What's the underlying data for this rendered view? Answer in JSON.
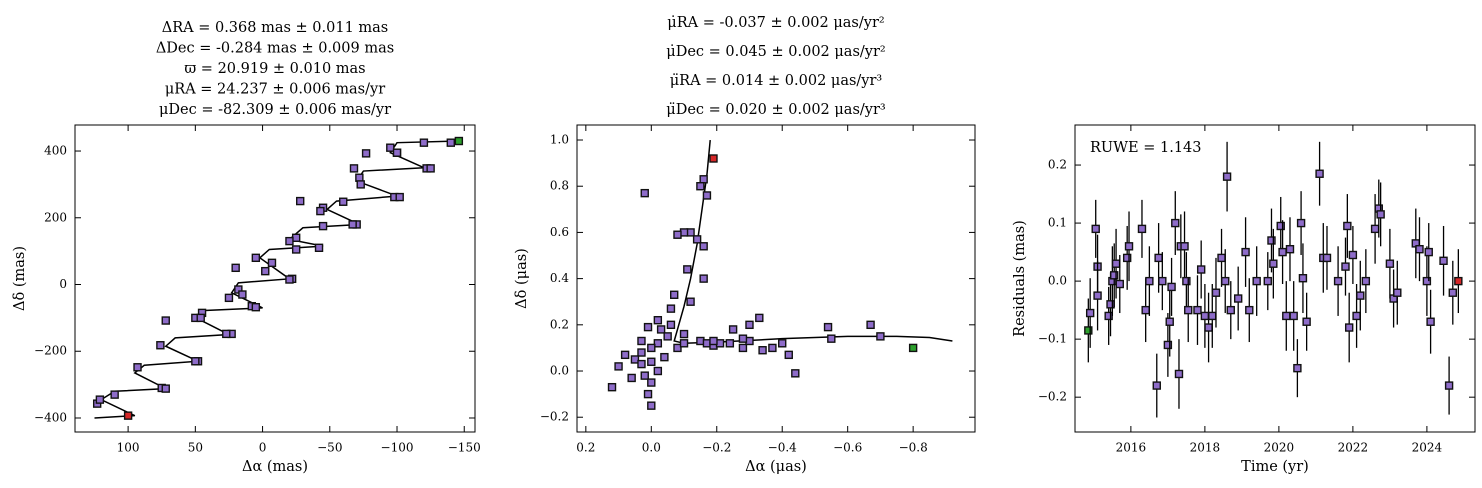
{
  "chart_data": [
    {
      "type": "scatter",
      "title_lines": [
        "ΔRA = 0.368 mas ± 0.011 mas",
        "ΔDec = -0.284 mas ± 0.009 mas",
        "ϖ = 20.919 ± 0.010 mas",
        "μRA = 24.237 ± 0.006 mas/yr",
        "μDec = -82.309 ± 0.006 mas/yr"
      ],
      "xlabel": "Δα (mas)",
      "ylabel": "Δδ (mas)",
      "xlim": [
        139.5,
        -158
      ],
      "ylim": [
        -442,
        478
      ],
      "xticks": [
        100,
        50,
        0,
        {
          "value": -50,
          "label": "−50"
        },
        {
          "value": -100,
          "label": "−100"
        },
        {
          "value": -150,
          "label": "−150"
        }
      ],
      "yticks": [
        {
          "value": -400,
          "label": "−400"
        },
        {
          "value": -200,
          "label": "−200"
        },
        0,
        200,
        400
      ],
      "curve": {
        "color": "#000000",
        "x": [
          -146,
          -100,
          -95,
          -120,
          -75,
          -70,
          -100,
          -55,
          -48,
          -72,
          -30,
          -20,
          -45,
          -5,
          2,
          -20,
          18,
          23,
          0,
          43,
          47,
          25,
          65,
          72,
          48,
          88,
          95,
          72,
          110,
          120,
          95,
          125
        ],
        "values": [
          430,
          425,
          395,
          350,
          340,
          310,
          265,
          250,
          225,
          180,
          170,
          135,
          115,
          105,
          80,
          17,
          5,
          -25,
          -70,
          -78,
          -105,
          -150,
          -160,
          -185,
          -230,
          -242,
          -265,
          -312,
          -320,
          -345,
          -393,
          -400
        ]
      },
      "series": [
        {
          "color": "#8e6cc9",
          "x": [
            -120,
            -122,
            -98,
            -102,
            -72,
            -73,
            -100,
            -95,
            -77,
            -68,
            -60,
            -45,
            -43,
            -70,
            -67,
            -45,
            -25,
            -20,
            -42,
            -25,
            -22,
            -20,
            5,
            20,
            18,
            15,
            25,
            45,
            50,
            23,
            27,
            48,
            50,
            75,
            72,
            93,
            76,
            123,
            121,
            110,
            72,
            46,
            -7,
            -2,
            -100,
            -125,
            -140,
            -28,
            8,
            5
          ],
          "values": [
            425,
            348,
            262,
            262,
            320,
            300,
            395,
            410,
            393,
            348,
            248,
            230,
            220,
            180,
            180,
            175,
            140,
            130,
            110,
            105,
            17,
            15,
            80,
            50,
            -15,
            -30,
            -40,
            -85,
            -100,
            -148,
            -148,
            -230,
            -230,
            -310,
            -312,
            -248,
            -182,
            -357,
            -345,
            -330,
            -108,
            -100,
            65,
            40,
            395,
            348,
            425,
            250,
            -65,
            -68
          ]
        },
        {
          "color": "#2ca02c",
          "x": [
            -146
          ],
          "values": [
            430
          ]
        },
        {
          "color": "#d62728",
          "x": [
            100
          ],
          "values": [
            -393
          ]
        }
      ]
    },
    {
      "type": "scatter",
      "title_lines": [
        "μ̇RA = -0.037 ± 0.002 μas/yr²",
        "μ̇Dec = 0.045 ± 0.002 μas/yr²",
        "μ̈RA = 0.014 ± 0.002 μas/yr³",
        "μ̈Dec = 0.020 ± 0.002 μas/yr³"
      ],
      "xlabel": "Δα (μas)",
      "ylabel": "Δδ (μas)",
      "xlim": [
        0.227,
        -0.989
      ],
      "ylim": [
        -0.264,
        1.065
      ],
      "xticks": [
        0.2,
        {
          "value": 0,
          "label": "0.0"
        },
        {
          "value": -0.2,
          "label": "−0.2"
        },
        {
          "value": -0.4,
          "label": "−0.4"
        },
        {
          "value": -0.6,
          "label": "−0.6"
        },
        {
          "value": -0.8,
          "label": "−0.8"
        }
      ],
      "yticks": [
        {
          "value": -0.2,
          "label": "−0.2"
        },
        {
          "value": 0,
          "label": "0.0"
        },
        0.2,
        0.4,
        0.6,
        0.8,
        {
          "value": 1,
          "label": "1.0"
        }
      ],
      "curve": {
        "color": "#000000",
        "x": [
          -0.18,
          -0.17,
          -0.155,
          -0.14,
          -0.12,
          -0.1,
          -0.08,
          -0.07,
          -0.1,
          -0.2,
          -0.4,
          -0.6,
          -0.75,
          -0.85,
          -0.92
        ],
        "values": [
          1.0,
          0.85,
          0.7,
          0.55,
          0.4,
          0.28,
          0.18,
          0.13,
          0.12,
          0.125,
          0.14,
          0.15,
          0.15,
          0.145,
          0.13
        ]
      },
      "series": [
        {
          "color": "#8e6cc9",
          "x": [
            0.02,
            -0.16,
            -0.15,
            -0.17,
            -0.12,
            -0.1,
            -0.08,
            -0.14,
            -0.16,
            -0.11,
            -0.16,
            -0.12,
            -0.07,
            -0.06,
            -0.06,
            -0.02,
            0.01,
            -0.03,
            0.03,
            -0.05,
            -0.02,
            0,
            0.03,
            0.05,
            0.1,
            0.08,
            0.06,
            0.02,
            0,
            -0.02,
            0.03,
            0,
            0.01,
            0,
            0.12,
            -0.04,
            -0.08,
            -0.1,
            -0.15,
            -0.17,
            -0.19,
            -0.21,
            -0.24,
            -0.28,
            -0.3,
            -0.3,
            -0.33,
            -0.37,
            -0.4,
            -0.42,
            -0.34,
            -0.28,
            -0.25,
            -0.19,
            -0.1,
            -0.54,
            -0.55,
            -0.67,
            -0.7,
            -0.44
          ],
          "values": [
            0.77,
            0.83,
            0.8,
            0.76,
            0.6,
            0.6,
            0.59,
            0.57,
            0.54,
            0.44,
            0.4,
            0.3,
            0.33,
            0.27,
            0.2,
            0.22,
            0.19,
            0.18,
            0.13,
            0.15,
            0.12,
            0.1,
            0.08,
            0.05,
            0.02,
            0.07,
            -0.03,
            -0.02,
            0.04,
            0,
            0.03,
            -0.15,
            -0.1,
            -0.05,
            -0.07,
            0.06,
            0.1,
            0.12,
            0.13,
            0.12,
            0.11,
            0.12,
            0.12,
            0.1,
            0.13,
            0.2,
            0.23,
            0.1,
            0.12,
            0.07,
            0.09,
            0.14,
            0.18,
            0.13,
            0.16,
            0.19,
            0.14,
            0.2,
            0.15,
            -0.01
          ]
        },
        {
          "color": "#2ca02c",
          "x": [
            -0.8
          ],
          "values": [
            0.1
          ]
        },
        {
          "color": "#d62728",
          "x": [
            -0.19
          ],
          "values": [
            0.92
          ]
        }
      ]
    },
    {
      "type": "errorbar",
      "annotation": "RUWE = 1.143",
      "xlabel": "Time (yr)",
      "ylabel": "Residuals (mas)",
      "xlim": [
        2014.49,
        2025.3
      ],
      "ylim": [
        -0.26,
        0.269
      ],
      "xticks": [
        2016,
        2018,
        2020,
        2022,
        2024
      ],
      "yticks": [
        {
          "value": -0.2,
          "label": "−0.2"
        },
        {
          "value": -0.1,
          "label": "−0.1"
        },
        {
          "value": 0,
          "label": "0.0"
        },
        0.1,
        0.2
      ],
      "series": [
        {
          "color": "#2ca02c",
          "x": [
            2014.85
          ],
          "values": [
            -0.085
          ],
          "errors": [
            0.055
          ]
        },
        {
          "color": "#8e6cc9",
          "x": [
            2014.9,
            2015.05,
            2015.1,
            2015.1,
            2015.4,
            2015.45,
            2015.5,
            2015.55,
            2015.6,
            2015.7,
            2015.9,
            2015.95,
            2016.3,
            2016.4,
            2016.5,
            2016.7,
            2016.75,
            2016.85,
            2017.0,
            2017.05,
            2017.1,
            2017.2,
            2017.3,
            2017.35,
            2017.45,
            2017.5,
            2017.55,
            2017.8,
            2017.9,
            2018.0,
            2018.1,
            2018.2,
            2018.3,
            2018.45,
            2018.55,
            2018.6,
            2018.7,
            2018.9,
            2019.1,
            2019.2,
            2019.4,
            2019.7,
            2019.8,
            2019.85,
            2020.05,
            2020.1,
            2020.2,
            2020.3,
            2020.4,
            2020.5,
            2020.6,
            2020.65,
            2020.75,
            2021.1,
            2021.2,
            2021.3,
            2021.6,
            2021.8,
            2021.85,
            2021.9,
            2022.0,
            2022.1,
            2022.2,
            2022.35,
            2022.6,
            2022.7,
            2022.75,
            2023.0,
            2023.1,
            2023.2,
            2023.7,
            2023.8,
            2024.0,
            2024.05,
            2024.1,
            2024.45,
            2024.6,
            2024.7
          ],
          "values": [
            -0.055,
            0.09,
            0.025,
            -0.025,
            -0.06,
            -0.04,
            0,
            0.01,
            0.03,
            -0.005,
            0.04,
            0.06,
            0.09,
            -0.05,
            0,
            -0.18,
            0.04,
            0,
            -0.11,
            -0.07,
            -0.01,
            0.1,
            -0.16,
            0.06,
            0.06,
            0,
            -0.05,
            -0.05,
            0.02,
            -0.06,
            -0.08,
            -0.06,
            -0.02,
            0.04,
            0,
            0.18,
            -0.05,
            -0.03,
            0.05,
            -0.05,
            0,
            0,
            0.07,
            0.03,
            0.095,
            0.05,
            -0.06,
            0.055,
            -0.06,
            -0.15,
            0.1,
            0.005,
            -0.07,
            0.185,
            0.04,
            0.04,
            0,
            0.025,
            0.095,
            -0.08,
            0.045,
            -0.06,
            -0.025,
            0,
            0.09,
            0.125,
            0.115,
            0.03,
            -0.03,
            -0.02,
            0.065,
            0.055,
            0,
            0.05,
            -0.07,
            0.035,
            -0.18,
            -0.02
          ],
          "errors": [
            0.06,
            0.05,
            0.055,
            0.06,
            0.05,
            0.055,
            0.06,
            0.055,
            0.06,
            0.05,
            0.055,
            0.06,
            0.05,
            0.055,
            0.06,
            0.055,
            0.06,
            0.05,
            0.055,
            0.06,
            0.05,
            0.055,
            0.06,
            0.055,
            0.06,
            0.05,
            0.055,
            0.06,
            0.05,
            0.055,
            0.06,
            0.055,
            0.06,
            0.05,
            0.055,
            0.06,
            0.05,
            0.055,
            0.06,
            0.055,
            0.06,
            0.05,
            0.055,
            0.06,
            0.05,
            0.055,
            0.06,
            0.055,
            0.06,
            0.05,
            0.055,
            0.06,
            0.05,
            0.055,
            0.06,
            0.055,
            0.06,
            0.05,
            0.055,
            0.06,
            0.05,
            0.055,
            0.06,
            0.055,
            0.06,
            0.05,
            0.055,
            0.06,
            0.05,
            0.055,
            0.06,
            0.055,
            0.06,
            0.05,
            0.055,
            0.06,
            0.05,
            0.055
          ]
        },
        {
          "color": "#d62728",
          "x": [
            2024.85
          ],
          "values": [
            0
          ],
          "errors": [
            0.055
          ]
        }
      ]
    }
  ]
}
